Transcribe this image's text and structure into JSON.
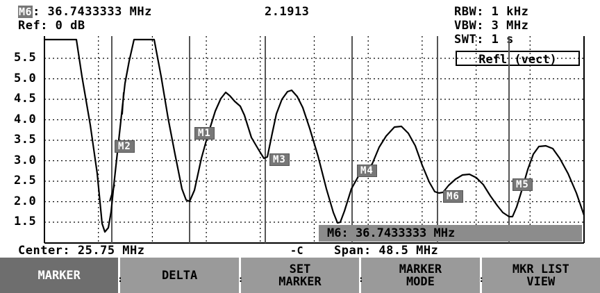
{
  "header": {
    "marker_badge": "M6",
    "marker_freq": ": 36.7433333 MHz",
    "marker_value": "2.1913",
    "ref": "Ref: 0 dB",
    "rbw": "RBW: 1 kHz",
    "vbw": "VBW: 3 MHz",
    "swt": "SWT: 1 s",
    "mode_box": "Refl (vect)"
  },
  "y_ticks": [
    "5.5",
    "5.0",
    "4.5",
    "4.0",
    "3.5",
    "3.0",
    "2.5",
    "2.0",
    "1.5"
  ],
  "markers": [
    {
      "label": "M1"
    },
    {
      "label": "M2"
    },
    {
      "label": "M3"
    },
    {
      "label": "M4"
    },
    {
      "label": "M5"
    },
    {
      "label": "M6"
    }
  ],
  "readout": "M6: 36.7433333 MHz",
  "footer": {
    "center": "Center: 25.75 MHz",
    "connector_icon": "-C",
    "span": "Span: 48.5 MHz"
  },
  "softkeys": [
    {
      "label": "MARKER",
      "active": true
    },
    {
      "label": "DELTA",
      "active": false
    },
    {
      "label": "SET\nMARKER",
      "active": false
    },
    {
      "label": "MARKER\nMODE",
      "active": false
    },
    {
      "label": "MKR LIST\nVIEW",
      "active": false
    }
  ],
  "colors": {
    "marker_bg": "#777777",
    "softkey_bg": "#9a9a9a",
    "softkey_active": "#6e6e6e",
    "readout_bg": "#8c8c8c"
  }
}
